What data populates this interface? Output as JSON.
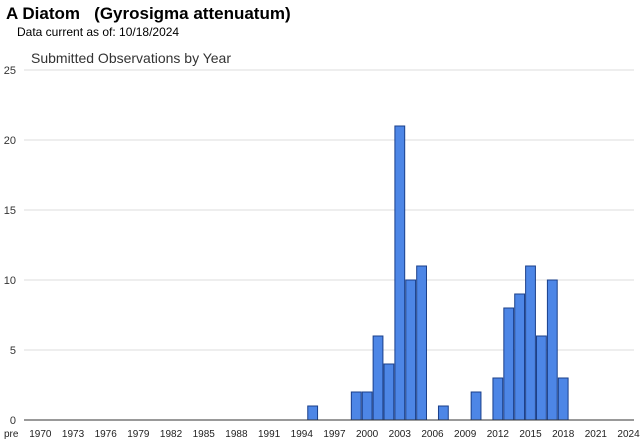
{
  "header": {
    "title": "A Diatom   (Gyrosigma attenuatum)",
    "subtitle": "Data current as of: 10/18/2024"
  },
  "chart_data": {
    "type": "bar",
    "title": "Submitted Observations by Year",
    "xlabel": "",
    "ylabel": "",
    "ylim": [
      0,
      25
    ],
    "yticks": [
      0,
      5,
      10,
      15,
      20,
      25
    ],
    "grid": true,
    "legend": "none",
    "bar_color": "#4d86e6",
    "bar_edge_color": "#1a3f8a",
    "categories": [
      "pre",
      "1970",
      "1971",
      "1972",
      "1973",
      "1974",
      "1975",
      "1976",
      "1977",
      "1978",
      "1979",
      "1980",
      "1981",
      "1982",
      "1983",
      "1984",
      "1985",
      "1986",
      "1987",
      "1988",
      "1989",
      "1990",
      "1991",
      "1992",
      "1993",
      "1994",
      "1995",
      "1996",
      "1997",
      "1998",
      "1999",
      "2000",
      "2001",
      "2002",
      "2003",
      "2004",
      "2005",
      "2006",
      "2007",
      "2008",
      "2009",
      "2010",
      "2011",
      "2012",
      "2013",
      "2014",
      "2015",
      "2016",
      "2017",
      "2018",
      "2019",
      "2020",
      "2021",
      "2022",
      "2023",
      "2024"
    ],
    "values": [
      0,
      0,
      0,
      0,
      0,
      0,
      0,
      0,
      0,
      0,
      0,
      0,
      0,
      0,
      0,
      0,
      0,
      0,
      0,
      0,
      0,
      0,
      0,
      0,
      0,
      0,
      1,
      0,
      0,
      0,
      2,
      2,
      6,
      4,
      21,
      10,
      11,
      0,
      1,
      0,
      0,
      2,
      0,
      3,
      8,
      9,
      11,
      6,
      10,
      3,
      0,
      0,
      0,
      0,
      0,
      0
    ],
    "tick_labels": [
      "pre",
      "1970",
      "1973",
      "1976",
      "1979",
      "1982",
      "1985",
      "1988",
      "1991",
      "1994",
      "1997",
      "2000",
      "2003",
      "2006",
      "2009",
      "2012",
      "2015",
      "2018",
      "2021",
      "2024"
    ]
  }
}
